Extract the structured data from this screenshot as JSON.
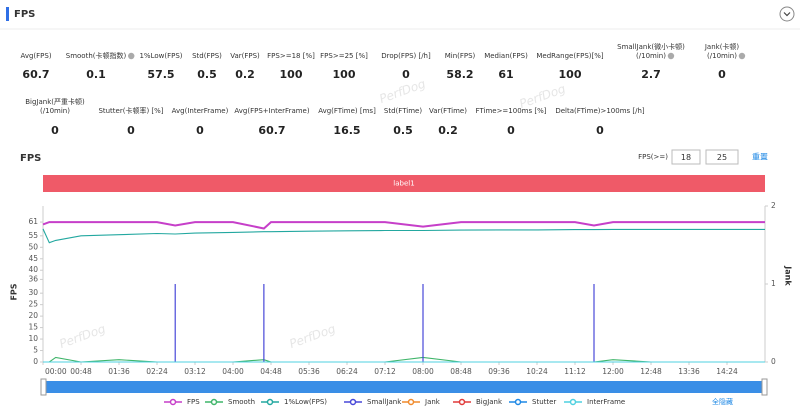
{
  "header": {
    "title": "FPS"
  },
  "stats": [
    [
      {
        "label": [
          "Avg(FPS)"
        ],
        "value": 60.7
      },
      {
        "label": [
          "Smooth(卡顿指数)"
        ],
        "value": 0.1,
        "help": true
      },
      {
        "label": [
          "1%Low(FPS)"
        ],
        "value": 57.5
      },
      {
        "label": [
          "Std(FPS)"
        ],
        "value": 0.5
      },
      {
        "label": [
          "Var(FPS)"
        ],
        "value": 0.2
      },
      {
        "label": [
          "FPS>=18 [%]"
        ],
        "value": 100
      },
      {
        "label": [
          "FPS>=25 [%]"
        ],
        "value": 100
      },
      {
        "label": [
          "Drop(FPS) [/h]"
        ],
        "value": 0
      },
      {
        "label": [
          "Min(FPS)"
        ],
        "value": 58.2
      },
      {
        "label": [
          "Median(FPS)"
        ],
        "value": 61
      },
      {
        "label": [
          "MedRange(FPS)[%]"
        ],
        "value": 100
      },
      {
        "label": [
          "SmallJank(微小卡顿)",
          "(/10min)"
        ],
        "value": 2.7,
        "help": true
      },
      {
        "label": [
          "Jank(卡顿)",
          "(/10min)"
        ],
        "value": 0,
        "help": true
      }
    ],
    [
      {
        "label": [
          "BigJank(严重卡顿)",
          "(/10min)"
        ],
        "value": 0
      },
      {
        "label": [
          "Stutter(卡顿率) [%]"
        ],
        "value": 0
      },
      {
        "label": [
          "Avg(InterFrame)"
        ],
        "value": 0
      },
      {
        "label": [
          "Avg(FPS+InterFrame)"
        ],
        "value": 60.7
      },
      {
        "label": [
          "Avg(FTime) [ms]"
        ],
        "value": 16.5
      },
      {
        "label": [
          "Std(FTime)"
        ],
        "value": 0.5
      },
      {
        "label": [
          "Var(FTime)"
        ],
        "value": 0.2
      },
      {
        "label": [
          "FTime>=100ms [%]"
        ],
        "value": 0
      },
      {
        "label": [
          "Delta(FTime)>100ms [/h]"
        ],
        "value": 0
      }
    ]
  ],
  "controls": {
    "threshold_label": "FPS(>=)",
    "thresholds": [
      18,
      25
    ],
    "reset": "重置",
    "hide_all": "全隐藏"
  },
  "watermark": "PerfDog",
  "chart_data": {
    "type": "line",
    "title": "FPS",
    "banner": "label1",
    "ylabel": "FPS",
    "y2label": "Jank",
    "x": [
      0,
      8,
      16,
      48,
      96,
      144,
      167,
      192,
      240,
      279,
      288,
      336,
      384,
      432,
      480,
      528,
      576,
      624,
      672,
      696,
      720,
      768,
      816,
      864,
      912
    ],
    "xlim": [
      0,
      912
    ],
    "xticks": [
      {
        "value": 0,
        "label": "00:00"
      },
      {
        "value": 48,
        "label": "00:48"
      },
      {
        "value": 96,
        "label": "01:36"
      },
      {
        "value": 144,
        "label": "02:24"
      },
      {
        "value": 192,
        "label": "03:12"
      },
      {
        "value": 240,
        "label": "04:00"
      },
      {
        "value": 288,
        "label": "04:48"
      },
      {
        "value": 336,
        "label": "05:36"
      },
      {
        "value": 384,
        "label": "06:24"
      },
      {
        "value": 432,
        "label": "07:12"
      },
      {
        "value": 480,
        "label": "08:00"
      },
      {
        "value": 528,
        "label": "08:48"
      },
      {
        "value": 576,
        "label": "09:36"
      },
      {
        "value": 624,
        "label": "10:24"
      },
      {
        "value": 672,
        "label": "11:12"
      },
      {
        "value": 720,
        "label": "12:00"
      },
      {
        "value": 768,
        "label": "12:48"
      },
      {
        "value": 816,
        "label": "13:36"
      },
      {
        "value": 864,
        "label": "14:24"
      }
    ],
    "ylim": [
      0,
      68
    ],
    "yticks": [
      0,
      5,
      10,
      15,
      20,
      25,
      30,
      36,
      40,
      45,
      50,
      55,
      61
    ],
    "y2lim": [
      0,
      2
    ],
    "y2ticks": [
      0,
      1,
      2
    ],
    "series": [
      {
        "name": "FPS",
        "color": "#c63fc9",
        "values": [
          60,
          61,
          61,
          61,
          61,
          61,
          59.5,
          61,
          61,
          58.2,
          61,
          61,
          61,
          61,
          59,
          61,
          61,
          61,
          61,
          59.5,
          61,
          61,
          61,
          61,
          61
        ]
      },
      {
        "name": "Smooth",
        "color": "#3fb56a",
        "values": [
          0,
          0,
          2,
          0,
          1,
          0,
          0,
          0,
          0,
          1,
          0,
          0,
          0,
          0,
          2,
          0,
          0,
          0,
          0,
          0,
          1,
          0,
          0,
          0,
          0
        ]
      },
      {
        "name": "1%Low(FPS)",
        "color": "#23a8a0",
        "values": [
          58,
          52,
          53,
          55,
          55.5,
          56,
          55.8,
          56.2,
          56.5,
          56.8,
          56.8,
          57,
          57.2,
          57.3,
          57.3,
          57.5,
          57.6,
          57.6,
          57.7,
          57.7,
          57.8,
          57.8,
          57.8,
          57.8,
          57.8
        ]
      },
      {
        "name": "SmallJank",
        "color": "#4848d8",
        "axis": "y2",
        "style": "spike",
        "values": [
          0,
          0,
          0,
          0,
          0,
          0,
          1,
          0,
          0,
          1,
          0,
          0,
          0,
          0,
          1,
          0,
          0,
          0,
          0,
          1,
          0,
          0,
          0,
          0,
          0
        ]
      },
      {
        "name": "Jank",
        "color": "#f08a2c",
        "axis": "y2",
        "style": "spike",
        "values": [
          0,
          0,
          0,
          0,
          0,
          0,
          0,
          0,
          0,
          0,
          0,
          0,
          0,
          0,
          0,
          0,
          0,
          0,
          0,
          0,
          0,
          0,
          0,
          0,
          0
        ]
      },
      {
        "name": "BigJank",
        "color": "#e03a3a",
        "axis": "y2",
        "style": "spike",
        "values": [
          0,
          0,
          0,
          0,
          0,
          0,
          0,
          0,
          0,
          0,
          0,
          0,
          0,
          0,
          0,
          0,
          0,
          0,
          0,
          0,
          0,
          0,
          0,
          0,
          0
        ]
      },
      {
        "name": "Stutter",
        "color": "#1e88e5",
        "style": "spike",
        "values": [
          0,
          0,
          0,
          0,
          0,
          0,
          0,
          0,
          0,
          0,
          0,
          0,
          0,
          0,
          0,
          0,
          0,
          0,
          0,
          0,
          0,
          0,
          0,
          0,
          0
        ]
      },
      {
        "name": "InterFrame",
        "color": "#4fd0e0",
        "values": [
          0,
          0,
          0,
          0,
          0,
          0,
          0,
          0,
          0,
          0,
          0,
          0,
          0,
          0,
          0,
          0,
          0,
          0,
          0,
          0,
          0,
          0,
          0,
          0,
          0
        ]
      }
    ]
  }
}
